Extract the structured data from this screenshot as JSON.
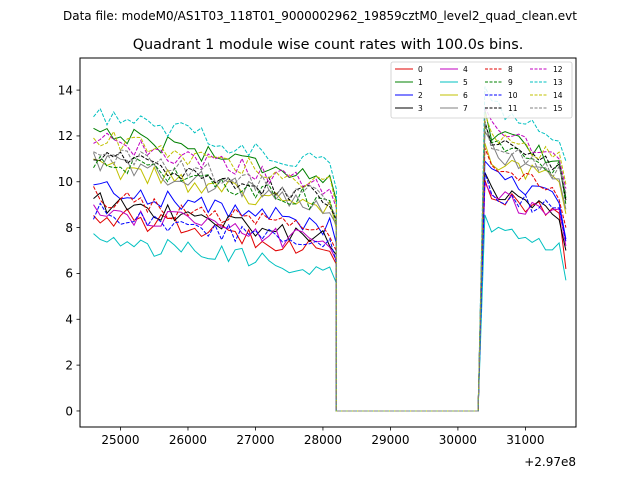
{
  "suptitle": "Data file: modeM0/AS1T03_118T01_9000002962_19859cztM0_level2_quad_clean.evt",
  "chart_data": {
    "type": "line",
    "title": "Quadrant 1 module wise count rates with 100.0s bins.",
    "xlabel": "",
    "ylabel": "",
    "x_offset_text": "+2.97e8",
    "xlim": [
      24400,
      31750
    ],
    "ylim": [
      -0.7,
      15.4
    ],
    "x_ticks": [
      25000,
      26000,
      27000,
      28000,
      29000,
      30000,
      31000
    ],
    "x_tick_labels": [
      "25000",
      "26000",
      "27000",
      "28000",
      "29000",
      "30000",
      "31000"
    ],
    "y_ticks": [
      0,
      2,
      4,
      6,
      8,
      10,
      12,
      14
    ],
    "y_tick_labels": [
      "0",
      "2",
      "4",
      "6",
      "8",
      "10",
      "12",
      "14"
    ],
    "legend_position": "upper-right",
    "segment1": {
      "x_start": 24600,
      "step": 100,
      "count": 37
    },
    "gap": {
      "start": 28200,
      "end": 30300
    },
    "segment2": {
      "x_start": 30400,
      "step": 100,
      "count": 13
    },
    "series": [
      {
        "name": "0",
        "color": "#e00000",
        "dash": "solid",
        "seg1_mean": 7.8,
        "seg2_mean": 9.0,
        "end_value": 6.2
      },
      {
        "name": "1",
        "color": "#008000",
        "dash": "solid",
        "seg1_mean": 11.2,
        "seg2_mean": 11.6,
        "end_value": 9.3
      },
      {
        "name": "2",
        "color": "#0000ff",
        "dash": "solid",
        "seg1_mean": 8.9,
        "seg2_mean": 9.8,
        "end_value": 7.5
      },
      {
        "name": "3",
        "color": "#000000",
        "dash": "solid",
        "seg1_mean": 8.3,
        "seg2_mean": 9.2,
        "end_value": 7.0
      },
      {
        "name": "4",
        "color": "#c000c0",
        "dash": "solid",
        "seg1_mean": 8.0,
        "seg2_mean": 9.0,
        "end_value": 7.2
      },
      {
        "name": "5",
        "color": "#00c0c0",
        "dash": "solid",
        "seg1_mean": 6.8,
        "seg2_mean": 7.6,
        "end_value": 5.7
      },
      {
        "name": "6",
        "color": "#c0c000",
        "dash": "solid",
        "seg1_mean": 9.7,
        "seg2_mean": 10.6,
        "end_value": 8.6
      },
      {
        "name": "7",
        "color": "#808080",
        "dash": "solid",
        "seg1_mean": 9.9,
        "seg2_mean": 10.9,
        "end_value": 8.8
      },
      {
        "name": "8",
        "color": "#e00000",
        "dash": "dashed",
        "seg1_mean": 8.5,
        "seg2_mean": 10.1,
        "end_value": 8.0
      },
      {
        "name": "9",
        "color": "#008000",
        "dash": "dashed",
        "seg1_mean": 10.0,
        "seg2_mean": 11.2,
        "end_value": 9.0
      },
      {
        "name": "10",
        "color": "#0000ff",
        "dash": "dashed",
        "seg1_mean": 7.9,
        "seg2_mean": 9.2,
        "end_value": 7.4
      },
      {
        "name": "11",
        "color": "#000000",
        "dash": "dashed",
        "seg1_mean": 10.2,
        "seg2_mean": 11.4,
        "end_value": 9.2
      },
      {
        "name": "12",
        "color": "#c000c0",
        "dash": "dashed",
        "seg1_mean": 10.8,
        "seg2_mean": 11.8,
        "end_value": 9.7
      },
      {
        "name": "13",
        "color": "#00c0c0",
        "dash": "dashed",
        "seg1_mean": 11.8,
        "seg2_mean": 12.8,
        "end_value": 10.9
      },
      {
        "name": "14",
        "color": "#c0c000",
        "dash": "dashed",
        "seg1_mean": 10.9,
        "seg2_mean": 11.6,
        "end_value": 9.9
      },
      {
        "name": "15",
        "color": "#808080",
        "dash": "dashed",
        "seg1_mean": 10.3,
        "seg2_mean": 11.1,
        "end_value": 9.5
      }
    ]
  }
}
